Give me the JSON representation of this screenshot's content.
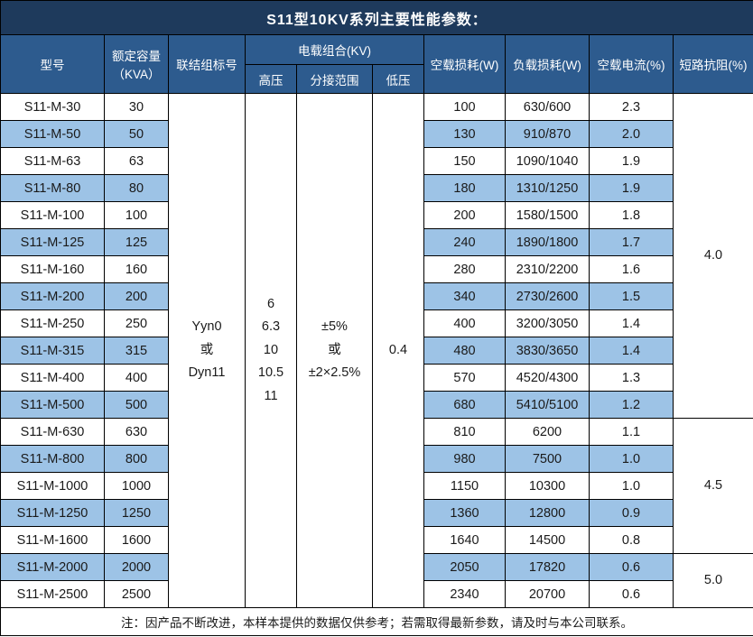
{
  "title": "S11型10KV系列主要性能参数：",
  "colors": {
    "title_bg": "#1e3a5c",
    "header_bg": "#2d5b8e",
    "stripe": "#9dc3e6",
    "border": "#000000"
  },
  "header": {
    "model": "型号",
    "capacity_line1": "额定容量",
    "capacity_line2": "（KVA）",
    "vector_group": "联结组标号",
    "voltage_combo": "电载组合(KV)",
    "hv": "高压",
    "tap_range": "分接范围",
    "lv": "低压",
    "no_load_loss": "空载损耗(W)",
    "load_loss": "负载损耗(W)",
    "no_load_current": "空载电流(%)",
    "impedance": "短路抗阻(%)"
  },
  "merged": {
    "vector_group": [
      "Yyn0",
      "或",
      "Dyn11"
    ],
    "hv": [
      "6",
      "6.3",
      "10",
      "10.5",
      "11"
    ],
    "tap_range": [
      "±5%",
      "或",
      "±2×2.5%"
    ],
    "lv": [
      "0.4"
    ]
  },
  "rows": [
    {
      "model": "S11-M-30",
      "capacity": "30",
      "no_load_loss": "100",
      "load_loss": "630/600",
      "no_load_current": "2.3"
    },
    {
      "model": "S11-M-50",
      "capacity": "50",
      "no_load_loss": "130",
      "load_loss": "910/870",
      "no_load_current": "2.0"
    },
    {
      "model": "S11-M-63",
      "capacity": "63",
      "no_load_loss": "150",
      "load_loss": "1090/1040",
      "no_load_current": "1.9"
    },
    {
      "model": "S11-M-80",
      "capacity": "80",
      "no_load_loss": "180",
      "load_loss": "1310/1250",
      "no_load_current": "1.9"
    },
    {
      "model": "S11-M-100",
      "capacity": "100",
      "no_load_loss": "200",
      "load_loss": "1580/1500",
      "no_load_current": "1.8"
    },
    {
      "model": "S11-M-125",
      "capacity": "125",
      "no_load_loss": "240",
      "load_loss": "1890/1800",
      "no_load_current": "1.7"
    },
    {
      "model": "S11-M-160",
      "capacity": "160",
      "no_load_loss": "280",
      "load_loss": "2310/2200",
      "no_load_current": "1.6"
    },
    {
      "model": "S11-M-200",
      "capacity": "200",
      "no_load_loss": "340",
      "load_loss": "2730/2600",
      "no_load_current": "1.5"
    },
    {
      "model": "S11-M-250",
      "capacity": "250",
      "no_load_loss": "400",
      "load_loss": "3200/3050",
      "no_load_current": "1.4"
    },
    {
      "model": "S11-M-315",
      "capacity": "315",
      "no_load_loss": "480",
      "load_loss": "3830/3650",
      "no_load_current": "1.4"
    },
    {
      "model": "S11-M-400",
      "capacity": "400",
      "no_load_loss": "570",
      "load_loss": "4520/4300",
      "no_load_current": "1.3"
    },
    {
      "model": "S11-M-500",
      "capacity": "500",
      "no_load_loss": "680",
      "load_loss": "5410/5100",
      "no_load_current": "1.2"
    },
    {
      "model": "S11-M-630",
      "capacity": "630",
      "no_load_loss": "810",
      "load_loss": "6200",
      "no_load_current": "1.1"
    },
    {
      "model": "S11-M-800",
      "capacity": "800",
      "no_load_loss": "980",
      "load_loss": "7500",
      "no_load_current": "1.0"
    },
    {
      "model": "S11-M-1000",
      "capacity": "1000",
      "no_load_loss": "1150",
      "load_loss": "10300",
      "no_load_current": "1.0"
    },
    {
      "model": "S11-M-1250",
      "capacity": "1250",
      "no_load_loss": "1360",
      "load_loss": "12800",
      "no_load_current": "0.9"
    },
    {
      "model": "S11-M-1600",
      "capacity": "1600",
      "no_load_loss": "1640",
      "load_loss": "14500",
      "no_load_current": "0.8"
    },
    {
      "model": "S11-M-2000",
      "capacity": "2000",
      "no_load_loss": "2050",
      "load_loss": "17820",
      "no_load_current": "0.6"
    },
    {
      "model": "S11-M-2500",
      "capacity": "2500",
      "no_load_loss": "2340",
      "load_loss": "20700",
      "no_load_current": "0.6"
    }
  ],
  "impedance_groups": [
    {
      "value": "4.0",
      "span": 12
    },
    {
      "value": "4.5",
      "span": 5
    },
    {
      "value": "5.0",
      "span": 2
    }
  ],
  "note": "注：因产品不断改进，本样本提供的数据仅供参考；若需取得最新参数，请及时与本公司联系。"
}
